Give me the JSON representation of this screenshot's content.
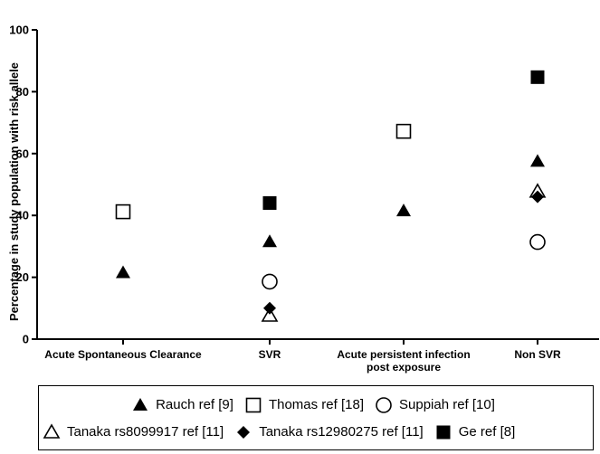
{
  "chart_data": {
    "type": "scatter",
    "ylabel": "Percentage  in study population with risk allele",
    "xlabel": "",
    "ylim": [
      0,
      100
    ],
    "yticks": [
      "0",
      "20",
      "40",
      "60",
      "80",
      "100"
    ],
    "categories": [
      {
        "line1": "Acute Spontaneous Clearance",
        "line2": ""
      },
      {
        "line1": "SVR",
        "line2": ""
      },
      {
        "line1": "Acute persistent infection",
        "line2": "post exposure"
      },
      {
        "line1": "Non SVR",
        "line2": ""
      }
    ],
    "series": [
      {
        "name": "Rauch ref [9]",
        "marker": "triangle-filled",
        "points": [
          {
            "category": "Acute Spontaneous Clearance",
            "value": 21.5
          },
          {
            "category": "SVR",
            "value": 31.5
          },
          {
            "category": "Acute persistent infection post exposure",
            "value": 41.5
          },
          {
            "category": "Non SVR",
            "value": 57.5
          }
        ]
      },
      {
        "name": "Thomas  ref [18]",
        "marker": "square-open",
        "points": [
          {
            "category": "Acute Spontaneous Clearance",
            "value": 41.2
          },
          {
            "category": "Acute persistent infection post exposure",
            "value": 67.2
          }
        ]
      },
      {
        "name": "Suppiah ref [10]",
        "marker": "circle-open",
        "points": [
          {
            "category": "SVR",
            "value": 18.6
          },
          {
            "category": "Non SVR",
            "value": 31.4
          }
        ]
      },
      {
        "name": "Tanaka rs8099917 ref [11]",
        "marker": "triangle-open",
        "points": [
          {
            "category": "SVR",
            "value": 7.6
          },
          {
            "category": "Non SVR",
            "value": 47.7
          }
        ]
      },
      {
        "name": "Tanaka rs12980275 ref [11]",
        "marker": "diamond-filled",
        "points": [
          {
            "category": "SVR",
            "value": 10.0
          },
          {
            "category": "Non SVR",
            "value": 46.0
          }
        ]
      },
      {
        "name": "Ge ref [8]",
        "marker": "square-filled",
        "points": [
          {
            "category": "SVR",
            "value": 44.0
          },
          {
            "category": "Non SVR",
            "value": 84.7
          }
        ]
      }
    ],
    "grid": false,
    "legend_position": "bottom"
  }
}
